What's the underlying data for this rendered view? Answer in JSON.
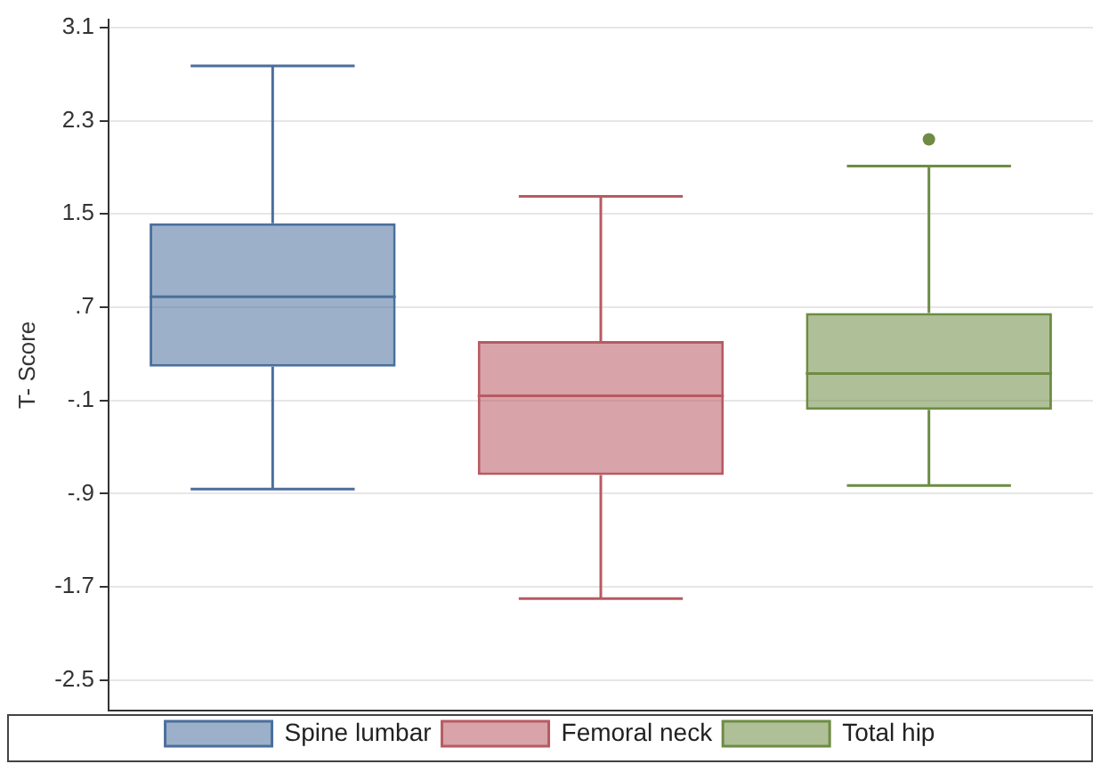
{
  "chart_data": {
    "type": "box",
    "ylabel": "T- Score",
    "categories": [
      null,
      null,
      null
    ],
    "series": [
      {
        "name": "Spine lumbar",
        "color": "#4a6f9c",
        "boxes": [
          {
            "low": -0.86,
            "q1": 0.19,
            "median": 0.79,
            "q3": 1.42,
            "high": 2.77
          },
          null,
          null
        ]
      },
      {
        "name": "Femoral neck",
        "color": "#b85a63",
        "boxes": [
          null,
          {
            "low": -1.8,
            "q1": -0.74,
            "median": -0.06,
            "q3": 0.41,
            "high": 1.65
          },
          null
        ]
      },
      {
        "name": "Total hip",
        "color": "#6e8c44",
        "boxes": [
          null,
          null,
          {
            "low": -0.83,
            "q1": -0.18,
            "median": 0.13,
            "q3": 0.65,
            "high": 1.91,
            "outliers": [
              2.14
            ]
          }
        ]
      }
    ],
    "ylim": [
      -2.76,
      3.17
    ],
    "yticks": [
      {
        "value": 3.1,
        "label": "3.1"
      },
      {
        "value": 2.3,
        "label": "2.3"
      },
      {
        "value": 1.5,
        "label": "1.5"
      },
      {
        "value": 0.7,
        "label": ".7"
      },
      {
        "value": -0.1,
        "label": "-.1"
      },
      {
        "value": -0.9,
        "label": "-.9"
      },
      {
        "value": -1.7,
        "label": "-1.7"
      },
      {
        "value": -2.5,
        "label": "-2.5"
      }
    ],
    "grid": "y",
    "legend": "bottom",
    "tick_labels": "y"
  }
}
